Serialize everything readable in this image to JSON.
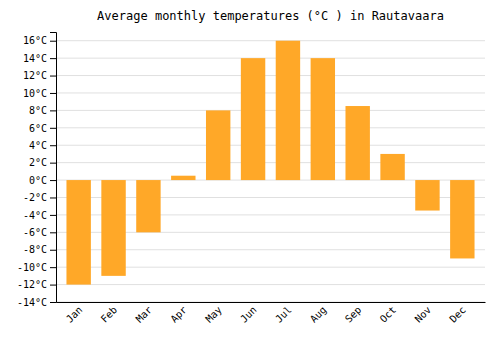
{
  "chart_data": {
    "type": "bar",
    "title": "Average monthly temperatures (°C ) in Rautavaara",
    "categories": [
      "Jan",
      "Feb",
      "Mar",
      "Apr",
      "May",
      "Jun",
      "Jul",
      "Aug",
      "Sep",
      "Oct",
      "Nov",
      "Dec"
    ],
    "values": [
      -12,
      -11,
      -6,
      0.5,
      8,
      14,
      16,
      14,
      8.5,
      3,
      -3.5,
      -9
    ],
    "color": "#FFA828",
    "ylim": [
      -14,
      17
    ],
    "yticks": [
      {
        "value": -14,
        "label": "-14°C"
      },
      {
        "value": -12,
        "label": "-12°C"
      },
      {
        "value": -10,
        "label": "-10°C"
      },
      {
        "value": -8,
        "label": "-8°C"
      },
      {
        "value": -6,
        "label": "-6°C"
      },
      {
        "value": -4,
        "label": "-4°C"
      },
      {
        "value": -2,
        "label": "-2°C"
      },
      {
        "value": 0,
        "label": "0°C"
      },
      {
        "value": 2,
        "label": "2°C"
      },
      {
        "value": 4,
        "label": "4°C"
      },
      {
        "value": 6,
        "label": "6°C"
      },
      {
        "value": 8,
        "label": "8°C"
      },
      {
        "value": 10,
        "label": "10°C"
      },
      {
        "value": 12,
        "label": "12°C"
      },
      {
        "value": 14,
        "label": "14°C"
      },
      {
        "value": 16,
        "label": "16°C"
      }
    ],
    "grid": true
  }
}
